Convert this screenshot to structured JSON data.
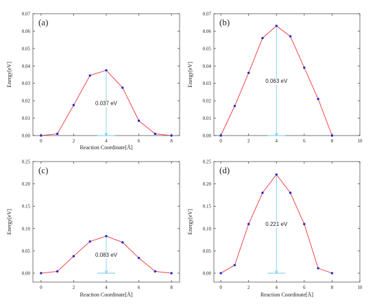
{
  "colors": {
    "line": "#f0434a",
    "marker": "#1e2bd6",
    "annotation": "#6ec8ee",
    "axis": "#333333",
    "frame": "#555555"
  },
  "chart_data": [
    {
      "type": "line",
      "panel_label": "(a)",
      "xlabel": "Reaction Coordinate[Å]",
      "ylabel": "Energy[eV]",
      "xlim": [
        -0.5,
        8.5
      ],
      "ylim": [
        0.0,
        0.07
      ],
      "xticks": [
        0,
        2,
        4,
        6,
        8
      ],
      "yticks": [
        0.0,
        0.01,
        0.02,
        0.03,
        0.04,
        0.05,
        0.06,
        0.07
      ],
      "ytick_labels": [
        "0.00",
        "0.01",
        "0.02",
        "0.03",
        "0.04",
        "0.05",
        "0.06",
        "0.07"
      ],
      "x": [
        0,
        1,
        2,
        3,
        4,
        5,
        6,
        7,
        8
      ],
      "y": [
        0.0,
        0.001,
        0.0175,
        0.0345,
        0.0375,
        0.0275,
        0.0085,
        0.001,
        0.0
      ],
      "annotation": {
        "text": "0.037 eV",
        "x": 4,
        "y_top": 0.0375,
        "y_bottom": 0.0
      }
    },
    {
      "type": "line",
      "panel_label": "(b)",
      "xlabel": "",
      "ylabel": "Energy[eV]",
      "xlim": [
        -0.5,
        10
      ],
      "ylim": [
        0.0,
        0.07
      ],
      "xticks": [
        0,
        2,
        4,
        6,
        8,
        10
      ],
      "yticks": [
        0.0,
        0.01,
        0.02,
        0.03,
        0.04,
        0.05,
        0.06,
        0.07
      ],
      "ytick_labels": [
        "0.00",
        "0.01",
        "0.02",
        "0.03",
        "0.04",
        "0.05",
        "0.06",
        "0.07"
      ],
      "x": [
        0,
        1,
        2,
        3,
        4,
        5,
        6,
        7,
        8
      ],
      "y": [
        0.0,
        0.017,
        0.036,
        0.056,
        0.063,
        0.057,
        0.039,
        0.021,
        0.0
      ],
      "annotation": {
        "text": "0.063 eV",
        "x": 4,
        "y_top": 0.063,
        "y_bottom": 0.0
      }
    },
    {
      "type": "line",
      "panel_label": "(c)",
      "xlabel": "Reaction Coordinate[Å]",
      "ylabel": "Energy[eV]",
      "xlim": [
        -0.5,
        8.5
      ],
      "ylim": [
        -0.02,
        0.25
      ],
      "xticks": [
        0,
        2,
        4,
        6,
        8
      ],
      "yticks": [
        0.0,
        0.05,
        0.1,
        0.15,
        0.2,
        0.25
      ],
      "ytick_labels": [
        "0.00",
        "0.05",
        "0.10",
        "0.15",
        "0.20",
        "0.25"
      ],
      "x": [
        0,
        1,
        2,
        3,
        4,
        5,
        6,
        7,
        8
      ],
      "y": [
        0.0,
        0.004,
        0.038,
        0.071,
        0.083,
        0.069,
        0.034,
        0.004,
        0.0
      ],
      "annotation": {
        "text": "0.083 eV",
        "x": 4,
        "y_top": 0.083,
        "y_bottom": 0.0
      }
    },
    {
      "type": "line",
      "panel_label": "(d)",
      "xlabel": "Reaction Coordinate[Å]",
      "ylabel": "Energy[eV]",
      "xlim": [
        -0.5,
        10
      ],
      "ylim": [
        -0.02,
        0.25
      ],
      "xticks": [
        0,
        2,
        4,
        6,
        8,
        10
      ],
      "yticks": [
        0.0,
        0.05,
        0.1,
        0.15,
        0.2,
        0.25
      ],
      "ytick_labels": [
        "0.00",
        "0.05",
        "0.10",
        "0.15",
        "0.20",
        "0.25"
      ],
      "x": [
        0,
        1,
        2,
        3,
        4,
        5,
        6,
        7,
        8
      ],
      "y": [
        0.0,
        0.018,
        0.11,
        0.18,
        0.221,
        0.18,
        0.11,
        0.011,
        0.0
      ],
      "annotation": {
        "text": "0.221 eV",
        "x": 4,
        "y_top": 0.221,
        "y_bottom": 0.0
      }
    }
  ]
}
